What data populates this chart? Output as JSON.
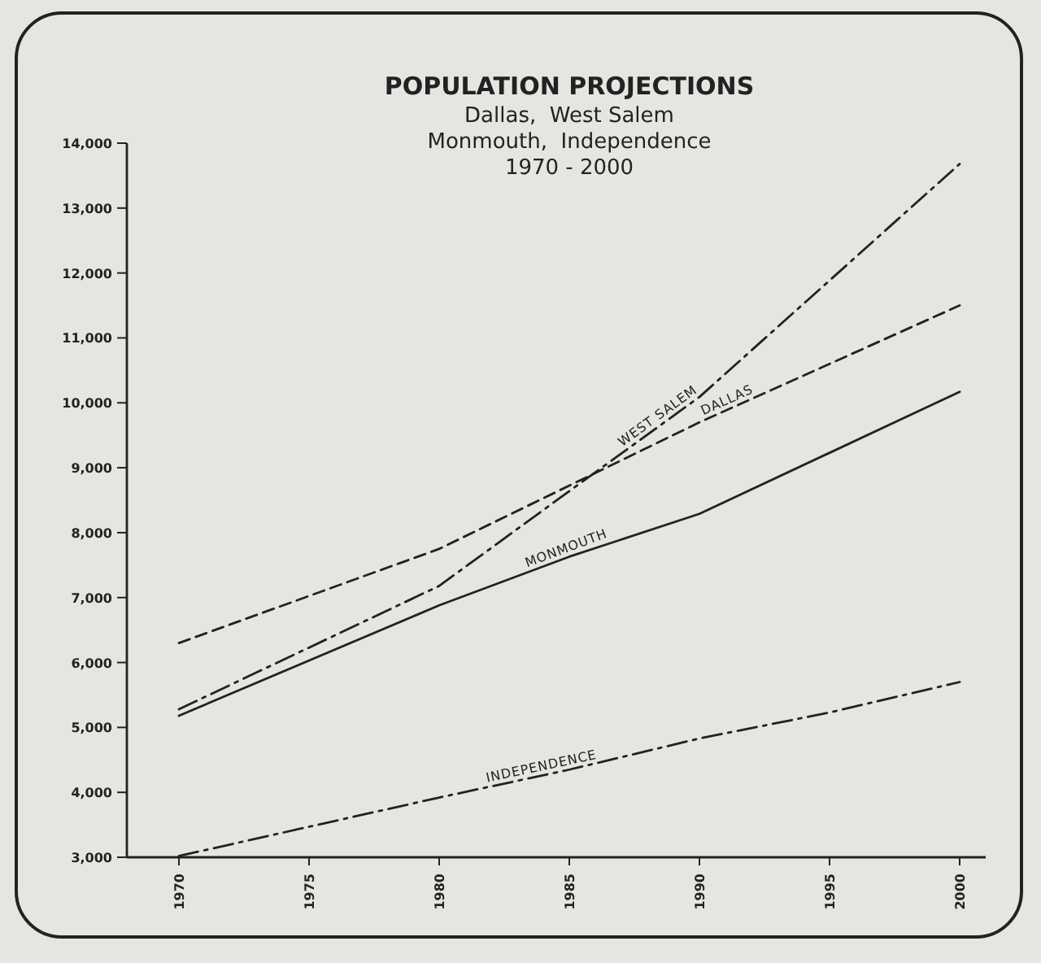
{
  "chart_data": {
    "type": "line",
    "title": "POPULATION PROJECTIONS",
    "subtitle": "Dallas,  West Salem\nMonmouth,  Independence\n1970 - 2000",
    "xlim": [
      1968,
      2001
    ],
    "xticks": [
      1970,
      1975,
      1980,
      1985,
      1990,
      1995,
      2000
    ],
    "ylim": [
      3000,
      14000
    ],
    "yticks": [
      {
        "value": 3000,
        "label": "3,000"
      },
      {
        "value": 4000,
        "label": "4,000"
      },
      {
        "value": 5000,
        "label": "5,000"
      },
      {
        "value": 6000,
        "label": "6,000"
      },
      {
        "value": 7000,
        "label": "7,000"
      },
      {
        "value": 8000,
        "label": "8,000"
      },
      {
        "value": 9000,
        "label": "9,000"
      },
      {
        "value": 10000,
        "label": "10,000"
      },
      {
        "value": 11000,
        "label": "11,000"
      },
      {
        "value": 12000,
        "label": "12,000"
      },
      {
        "value": 13000,
        "label": "13,000"
      },
      {
        "value": 14000,
        "label": "14,000"
      }
    ],
    "grid": false,
    "marker": "none",
    "series": [
      {
        "name": "WEST  SALEM",
        "color": "#222222",
        "line_style": "dashdot",
        "values": [
          5280,
          7180,
          8640,
          10090,
          null,
          13680
        ],
        "x": [
          1970,
          1980,
          1985,
          1990,
          1995,
          2000
        ]
      },
      {
        "name": "DALLAS",
        "color": "#222222",
        "line_style": "dashed",
        "values": [
          6300,
          7750,
          null,
          9700,
          null,
          11500
        ],
        "x": [
          1970,
          1980,
          1985,
          1990,
          1995,
          2000
        ]
      },
      {
        "name": "MONMOUTH",
        "color": "#222222",
        "line_style": "solid",
        "values": [
          5180,
          6880,
          7630,
          8290,
          null,
          10170
        ],
        "x": [
          1970,
          1980,
          1985,
          1990,
          1995,
          2000
        ]
      },
      {
        "name": "INDEPENDENCE",
        "color": "#222222",
        "line_style": "dashdot",
        "values": [
          3020,
          3920,
          4350,
          4830,
          5230,
          5700
        ],
        "x": [
          1970,
          1980,
          1985,
          1990,
          1995,
          2000
        ]
      }
    ]
  }
}
